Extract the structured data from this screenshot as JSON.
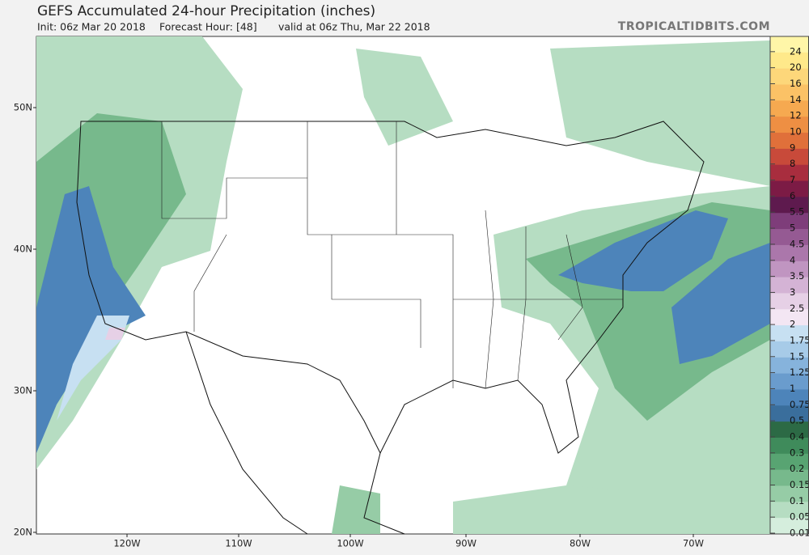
{
  "header": {
    "title": "GEFS Accumulated 24-hour Precipitation (inches)",
    "init": "Init: 06z Mar 20 2018",
    "forecast_hour": "Forecast Hour: [48]",
    "valid": "valid at 06z Thu, Mar 22 2018",
    "source": "TROPICALTIDBITS.COM"
  },
  "map": {
    "lat_labels": [
      "50N",
      "40N",
      "30N",
      "20N"
    ],
    "lon_labels": [
      "120W",
      "110W",
      "100W",
      "90W",
      "80W",
      "70W"
    ]
  },
  "colorbar": {
    "labels": [
      "24",
      "20",
      "16",
      "14",
      "12",
      "10",
      "9",
      "8",
      "7",
      "6",
      "5.5",
      "5",
      "4.5",
      "4",
      "3.5",
      "3",
      "2.5",
      "2",
      "1.75",
      "1.5",
      "1.25",
      "1",
      "0.75",
      "0.5",
      "0.4",
      "0.3",
      "0.2",
      "0.15",
      "0.1",
      "0.05",
      "0.01"
    ],
    "colors": [
      "#fff6a8",
      "#ffe98a",
      "#fdd77a",
      "#fbc266",
      "#f6a950",
      "#ee8f43",
      "#e0703a",
      "#c84a3a",
      "#a82d3e",
      "#7c1b45",
      "#5e1a4e",
      "#7e3d7a",
      "#955a93",
      "#ab77ab",
      "#c095c1",
      "#d4b3d5",
      "#e6d0e6",
      "#f3e6f3",
      "#c7e0f2",
      "#a7cbe8",
      "#86b3dc",
      "#6a9ccd",
      "#4d84ba",
      "#3a6e9c",
      "#2c6a45",
      "#3f8b5b",
      "#58a472",
      "#77b98c",
      "#96cca6",
      "#b6ddc2",
      "#d5eedd"
    ]
  }
}
